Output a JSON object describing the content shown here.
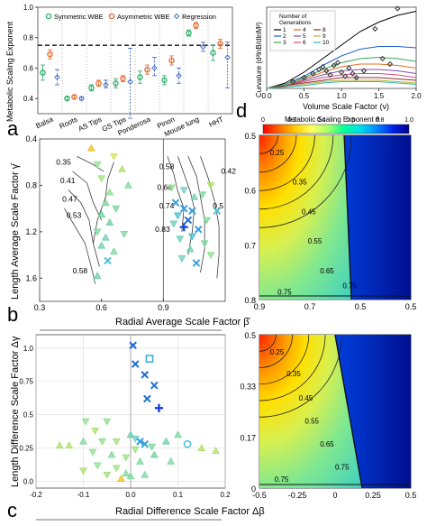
{
  "panel_labels": [
    "a",
    "b",
    "c",
    "d"
  ],
  "colorbar": {
    "title": "Metabolic Scaling Exponent θ",
    "ticks": [
      "0",
      "0.2",
      "0.4",
      "0.6",
      "0.8",
      "1.0"
    ],
    "stops": [
      "#ff0000",
      "#ff6a00",
      "#ffcc00",
      "#ffff66",
      "#aaff66",
      "#00ff99",
      "#00ddee",
      "#0088ff",
      "#0022ee",
      "#00008b"
    ]
  },
  "chart_data": [
    {
      "panel": "a",
      "type": "scatter",
      "ylabel": "Metabolic Scaling Exponent",
      "ylim": [
        0.3,
        1.0
      ],
      "yticks": [
        "0.4",
        "0.6",
        "0.8",
        "1.0"
      ],
      "reference_line": 0.75,
      "categories": [
        "Balsa",
        "Roots",
        "AS Tips",
        "GS Tips",
        "Ponderosa",
        "Pinon",
        "Mouse lung",
        "HHT"
      ],
      "legend": "top",
      "series": [
        {
          "name": "Symmetric WBE",
          "color": "#3cb371",
          "marker": "circle",
          "values": [
            0.57,
            0.4,
            0.47,
            0.5,
            0.54,
            0.52,
            0.83,
            0.7
          ],
          "err_lo": [
            0.05,
            0.01,
            0.02,
            0.03,
            0.04,
            0.03,
            0.02,
            0.05
          ],
          "err_hi": [
            0.05,
            0.01,
            0.02,
            0.03,
            0.04,
            0.03,
            0.02,
            0.05
          ]
        },
        {
          "name": "Asymmetric WBE",
          "color": "#e8743b",
          "marker": "circle",
          "values": [
            0.69,
            0.41,
            0.5,
            0.53,
            0.59,
            0.65,
            0.88,
            0.76
          ],
          "err_lo": [
            0.03,
            0.01,
            0.02,
            0.02,
            0.03,
            0.03,
            0.02,
            0.03
          ],
          "err_hi": [
            0.03,
            0.01,
            0.02,
            0.02,
            0.03,
            0.03,
            0.02,
            0.03
          ]
        },
        {
          "name": "Regression",
          "color": "#4a6fc8",
          "marker": "diamond",
          "values": [
            0.54,
            0.4,
            0.49,
            0.51,
            0.6,
            0.55,
            0.74,
            0.67
          ],
          "err_lo": [
            0.05,
            0.01,
            0.02,
            0.24,
            0.05,
            0.05,
            0.03,
            0.2
          ],
          "err_hi": [
            0.05,
            0.01,
            0.03,
            0.22,
            0.07,
            0.05,
            0.03,
            0.1
          ]
        }
      ]
    },
    {
      "panel": "top-right",
      "type": "line",
      "xlabel": "Volume Scale Factor (ν)",
      "ylabel": "Curvature (d²lnB/dlnM²)",
      "xlim": [
        0.0,
        2.0
      ],
      "xticks": [
        "0.0",
        "0.5",
        "1.0",
        "1.5",
        "2.0"
      ],
      "ylim": [
        0,
        0.06
      ],
      "legend": "top-left",
      "legend_title": "Number of Generations",
      "series": [
        {
          "name": "1",
          "color": "#000000",
          "x": [
            0.0,
            0.25,
            0.5,
            0.75,
            1.0,
            1.25,
            1.5,
            1.75,
            2.0
          ],
          "y": [
            0.0,
            0.004,
            0.012,
            0.022,
            0.032,
            0.042,
            0.049,
            0.054,
            0.057
          ]
        },
        {
          "name": "2",
          "color": "#1f5fd0",
          "x": [
            0.0,
            0.25,
            0.5,
            0.75,
            1.0,
            1.25,
            1.5,
            1.75,
            2.0
          ],
          "y": [
            0.0,
            0.003,
            0.009,
            0.017,
            0.024,
            0.029,
            0.031,
            0.031,
            0.03
          ]
        },
        {
          "name": "3",
          "color": "#3aa655",
          "x": [
            0.0,
            0.25,
            0.5,
            0.75,
            1.0,
            1.25,
            1.5,
            1.75,
            2.0
          ],
          "y": [
            0.0,
            0.003,
            0.008,
            0.014,
            0.019,
            0.022,
            0.023,
            0.022,
            0.02
          ]
        },
        {
          "name": "4",
          "color": "#e07020",
          "x": [
            0.0,
            0.25,
            0.5,
            0.75,
            1.0,
            1.25,
            1.5,
            1.75,
            2.0
          ],
          "y": [
            0.0,
            0.002,
            0.007,
            0.012,
            0.016,
            0.018,
            0.018,
            0.017,
            0.015
          ]
        },
        {
          "name": "5",
          "color": "#7b4fb0",
          "x": [
            0.0,
            0.25,
            0.5,
            0.75,
            1.0,
            1.25,
            1.5,
            1.75,
            2.0
          ],
          "y": [
            0.0,
            0.002,
            0.006,
            0.01,
            0.013,
            0.014,
            0.014,
            0.013,
            0.011
          ]
        },
        {
          "name": "6",
          "color": "#d44a7a",
          "x": [
            0.0,
            0.25,
            0.5,
            0.75,
            1.0,
            1.25,
            1.5,
            1.75,
            2.0
          ],
          "y": [
            0.0,
            0.002,
            0.005,
            0.008,
            0.01,
            0.011,
            0.011,
            0.01,
            0.008
          ]
        },
        {
          "name": "8",
          "color": "#8f2d2d",
          "x": [
            0.0,
            0.25,
            0.5,
            0.75,
            1.0,
            1.25,
            1.5,
            1.75,
            2.0
          ],
          "y": [
            0.0,
            0.002,
            0.004,
            0.006,
            0.008,
            0.008,
            0.008,
            0.007,
            0.006
          ]
        },
        {
          "name": "9",
          "color": "#b5b52d",
          "x": [
            0.0,
            0.25,
            0.5,
            0.75,
            1.0,
            1.25,
            1.5,
            1.75,
            2.0
          ],
          "y": [
            0.0,
            0.001,
            0.003,
            0.005,
            0.006,
            0.006,
            0.006,
            0.005,
            0.004
          ]
        },
        {
          "name": "10",
          "color": "#2db5b5",
          "x": [
            0.0,
            0.25,
            0.5,
            0.75,
            1.0,
            1.25,
            1.5,
            1.75,
            2.0
          ],
          "y": [
            0.0,
            0.001,
            0.002,
            0.004,
            0.005,
            0.005,
            0.005,
            0.004,
            0.003
          ]
        }
      ],
      "markers": [
        {
          "x": 0.35,
          "y": 0.005
        },
        {
          "x": 0.5,
          "y": 0.008
        },
        {
          "x": 0.62,
          "y": 0.011
        },
        {
          "x": 0.7,
          "y": 0.014
        },
        {
          "x": 0.75,
          "y": 0.016
        },
        {
          "x": 0.8,
          "y": 0.013
        },
        {
          "x": 0.85,
          "y": 0.01
        },
        {
          "x": 0.9,
          "y": 0.017
        },
        {
          "x": 0.95,
          "y": 0.019
        },
        {
          "x": 1.0,
          "y": 0.012
        },
        {
          "x": 1.05,
          "y": 0.009
        },
        {
          "x": 1.1,
          "y": 0.015
        },
        {
          "x": 1.15,
          "y": 0.011
        },
        {
          "x": 1.2,
          "y": 0.008
        },
        {
          "x": 1.3,
          "y": 0.013
        },
        {
          "x": 1.45,
          "y": 0.044
        },
        {
          "x": 1.55,
          "y": 0.022
        },
        {
          "x": 1.65,
          "y": 0.018
        },
        {
          "x": 1.75,
          "y": 0.059
        }
      ]
    },
    {
      "panel": "b",
      "type": "scatter",
      "xlabel": "Radial Average Scale Factor β̄",
      "ylabel": "Length Average Scale Factor γ̄",
      "xlim": [
        0.3,
        1.2
      ],
      "xticks": [
        "0.3",
        "0.6",
        "0.9"
      ],
      "ylim": [
        0.4,
        1.8
      ],
      "yticks": [
        "0.4",
        "0.8",
        "1.2",
        "1.6"
      ],
      "y_reversed": true,
      "contour_labels": [
        "0.35",
        "0.41",
        "0.47",
        "0.53",
        "0.58",
        "0.58",
        "0.66",
        "0.74",
        "0.83",
        "0.42",
        "0.5"
      ],
      "points": [
        {
          "x": 0.55,
          "y": 0.48,
          "m": "tri-up",
          "c": "#f0c020"
        },
        {
          "x": 0.66,
          "y": 0.55,
          "m": "tri-down",
          "c": "#d8e060"
        },
        {
          "x": 0.58,
          "y": 0.62,
          "m": "tri-down",
          "c": "#90e090"
        },
        {
          "x": 0.7,
          "y": 0.66,
          "m": "tri-up",
          "c": "#b0e070"
        },
        {
          "x": 0.6,
          "y": 0.74,
          "m": "tri-down",
          "c": "#a0e080"
        },
        {
          "x": 0.73,
          "y": 0.8,
          "m": "tri-up",
          "c": "#80d8a0"
        },
        {
          "x": 0.64,
          "y": 0.86,
          "m": "tri-up",
          "c": "#90e090"
        },
        {
          "x": 0.62,
          "y": 0.95,
          "m": "tri-up",
          "c": "#7fd49a"
        },
        {
          "x": 0.67,
          "y": 1.0,
          "m": "tri-down",
          "c": "#7fd49a"
        },
        {
          "x": 0.6,
          "y": 1.05,
          "m": "tri-up",
          "c": "#6fd0a0"
        },
        {
          "x": 0.64,
          "y": 1.12,
          "m": "tri-up",
          "c": "#6fd0a0"
        },
        {
          "x": 0.58,
          "y": 1.2,
          "m": "tri-down",
          "c": "#80d8a0"
        },
        {
          "x": 0.62,
          "y": 1.25,
          "m": "tri-up",
          "c": "#70d0b0"
        },
        {
          "x": 0.6,
          "y": 1.32,
          "m": "tri-up",
          "c": "#70d0b0"
        },
        {
          "x": 0.66,
          "y": 1.37,
          "m": "tri-up",
          "c": "#80d8a0"
        },
        {
          "x": 0.63,
          "y": 1.45,
          "m": "cross",
          "c": "#50c0d0"
        },
        {
          "x": 0.58,
          "y": 1.58,
          "m": "tri-up",
          "c": "#70d0b0"
        },
        {
          "x": 0.71,
          "y": 1.22,
          "m": "tri-down",
          "c": "#80d8a0"
        },
        {
          "x": 0.94,
          "y": 0.82,
          "m": "tri-down",
          "c": "#90e090"
        },
        {
          "x": 1.0,
          "y": 0.84,
          "m": "tri-down",
          "c": "#6fd0c0"
        },
        {
          "x": 1.05,
          "y": 0.9,
          "m": "tri-up",
          "c": "#70d0b0"
        },
        {
          "x": 1.09,
          "y": 0.88,
          "m": "tri-down",
          "c": "#80d8a0"
        },
        {
          "x": 1.13,
          "y": 0.8,
          "m": "tri-down",
          "c": "#b0e070"
        },
        {
          "x": 0.96,
          "y": 0.95,
          "m": "cross",
          "c": "#3aa0e0"
        },
        {
          "x": 1.0,
          "y": 1.0,
          "m": "cross",
          "c": "#3aa0e0"
        },
        {
          "x": 1.04,
          "y": 1.02,
          "m": "cross",
          "c": "#3aa0e0"
        },
        {
          "x": 0.97,
          "y": 1.06,
          "m": "tri-down",
          "c": "#50c0d0"
        },
        {
          "x": 1.02,
          "y": 1.1,
          "m": "cross",
          "c": "#2070d0"
        },
        {
          "x": 0.95,
          "y": 1.13,
          "m": "tri-down",
          "c": "#6fd0c0"
        },
        {
          "x": 1.0,
          "y": 1.16,
          "m": "plus",
          "c": "#1a50e0"
        },
        {
          "x": 1.07,
          "y": 1.18,
          "m": "cross",
          "c": "#3aa0e0"
        },
        {
          "x": 1.04,
          "y": 1.24,
          "m": "tri-down",
          "c": "#50c0d0"
        },
        {
          "x": 0.98,
          "y": 1.26,
          "m": "tri-down",
          "c": "#6fd0c0"
        },
        {
          "x": 1.1,
          "y": 1.3,
          "m": "tri-down",
          "c": "#80d8a0"
        },
        {
          "x": 1.03,
          "y": 1.35,
          "m": "tri-up",
          "c": "#70d0b0"
        },
        {
          "x": 1.13,
          "y": 1.4,
          "m": "tri-down",
          "c": "#90e090"
        },
        {
          "x": 0.99,
          "y": 1.43,
          "m": "tri-down",
          "c": "#6fd0c0"
        },
        {
          "x": 1.06,
          "y": 1.47,
          "m": "cross",
          "c": "#3aa0e0"
        },
        {
          "x": 1.11,
          "y": 1.1,
          "m": "tri-down",
          "c": "#80d8a0"
        },
        {
          "x": 1.16,
          "y": 1.02,
          "m": "cross",
          "c": "#50c0d0"
        }
      ]
    },
    {
      "panel": "c",
      "type": "scatter",
      "xlabel": "Radial Difference Scale Factor Δβ",
      "ylabel": "Length Difference Scale Factor Δγ",
      "xlim": [
        -0.2,
        0.2
      ],
      "xticks": [
        "-0.2",
        "-0.1",
        "0.0",
        "0.1",
        "0.2"
      ],
      "ylim": [
        -0.05,
        1.1
      ],
      "yticks": [
        "0.0",
        "0.25",
        "0.5",
        "0.75",
        "1.0"
      ],
      "points": [
        {
          "x": 0.005,
          "y": 1.02,
          "m": "cross",
          "c": "#1a60e0"
        },
        {
          "x": 0.04,
          "y": 0.92,
          "m": "square",
          "c": "#40b0e0"
        },
        {
          "x": 0.01,
          "y": 0.88,
          "m": "cross",
          "c": "#2070d0"
        },
        {
          "x": 0.03,
          "y": 0.8,
          "m": "cross",
          "c": "#2070d0"
        },
        {
          "x": 0.05,
          "y": 0.72,
          "m": "cross",
          "c": "#2070d0"
        },
        {
          "x": 0.035,
          "y": 0.62,
          "m": "cross",
          "c": "#2070d0"
        },
        {
          "x": 0.06,
          "y": 0.55,
          "m": "plus",
          "c": "#1a40e0"
        },
        {
          "x": -0.095,
          "y": 0.45,
          "m": "tri-down",
          "c": "#90e090"
        },
        {
          "x": -0.05,
          "y": 0.45,
          "m": "tri-down",
          "c": "#90e090"
        },
        {
          "x": -0.075,
          "y": 0.38,
          "m": "tri-down",
          "c": "#b0e070"
        },
        {
          "x": -0.1,
          "y": 0.3,
          "m": "tri-up",
          "c": "#80d8a0"
        },
        {
          "x": -0.06,
          "y": 0.3,
          "m": "tri-down",
          "c": "#90e090"
        },
        {
          "x": -0.03,
          "y": 0.3,
          "m": "tri-down",
          "c": "#a0e080"
        },
        {
          "x": 0.0,
          "y": 0.35,
          "m": "tri-up",
          "c": "#70d0b0"
        },
        {
          "x": 0.01,
          "y": 0.32,
          "m": "tri-down",
          "c": "#6fd0c0"
        },
        {
          "x": 0.02,
          "y": 0.3,
          "m": "cross",
          "c": "#3aa0e0"
        },
        {
          "x": 0.03,
          "y": 0.28,
          "m": "cross",
          "c": "#3aa0e0"
        },
        {
          "x": 0.045,
          "y": 0.26,
          "m": "tri-down",
          "c": "#80d8a0"
        },
        {
          "x": 0.075,
          "y": 0.3,
          "m": "tri-up",
          "c": "#70d0b0"
        },
        {
          "x": 0.1,
          "y": 0.35,
          "m": "tri-up",
          "c": "#80d8a0"
        },
        {
          "x": 0.12,
          "y": 0.28,
          "m": "circle",
          "c": "#40c0d0"
        },
        {
          "x": -0.15,
          "y": 0.27,
          "m": "tri-up",
          "c": "#b0e070"
        },
        {
          "x": -0.13,
          "y": 0.27,
          "m": "tri-up",
          "c": "#b0e070"
        },
        {
          "x": -0.08,
          "y": 0.22,
          "m": "tri-down",
          "c": "#90e090"
        },
        {
          "x": -0.04,
          "y": 0.2,
          "m": "tri-up",
          "c": "#80d8a0"
        },
        {
          "x": -0.01,
          "y": 0.18,
          "m": "tri-down",
          "c": "#a0e080"
        },
        {
          "x": 0.02,
          "y": 0.15,
          "m": "tri-up",
          "c": "#80d8a0"
        },
        {
          "x": 0.05,
          "y": 0.2,
          "m": "tri-up",
          "c": "#6fd0a0"
        },
        {
          "x": 0.085,
          "y": 0.15,
          "m": "tri-up",
          "c": "#80d8a0"
        },
        {
          "x": 0.15,
          "y": 0.25,
          "m": "tri-up",
          "c": "#b0e070"
        },
        {
          "x": 0.18,
          "y": 0.23,
          "m": "tri-up",
          "c": "#b0e070"
        },
        {
          "x": -0.07,
          "y": 0.12,
          "m": "tri-down",
          "c": "#90e090"
        },
        {
          "x": -0.03,
          "y": 0.1,
          "m": "tri-down",
          "c": "#a0e080"
        },
        {
          "x": -0.05,
          "y": 0.05,
          "m": "tri-down",
          "c": "#a0e080"
        },
        {
          "x": -0.01,
          "y": 0.06,
          "m": "tri-up",
          "c": "#80d8a0"
        },
        {
          "x": -0.02,
          "y": 0.02,
          "m": "tri-up",
          "c": "#f0c020"
        },
        {
          "x": 0.0,
          "y": 0.04,
          "m": "tri-up",
          "c": "#80d8a0"
        },
        {
          "x": 0.03,
          "y": 0.05,
          "m": "tri-up",
          "c": "#80d8a0"
        },
        {
          "x": -0.1,
          "y": 0.08,
          "m": "tri-down",
          "c": "#b0e070"
        },
        {
          "x": 0.01,
          "y": 0.24,
          "m": "tri-down",
          "c": "#a0e080"
        }
      ]
    },
    {
      "panel": "d",
      "type": "heatmap",
      "xlabel": "",
      "ylabel": "",
      "xticks": [
        "0.9",
        "0.7",
        "0.5",
        "0.5"
      ],
      "yticks": [
        "0.5",
        "0.6",
        "0.7",
        "0.8"
      ],
      "contour_labels": [
        "0.25",
        "0.35",
        "0.45",
        "0.55",
        "0.65",
        "0.75",
        "0.75"
      ]
    },
    {
      "panel": "d-lower",
      "type": "heatmap",
      "xlabel": "",
      "ylabel": "",
      "xticks": [
        "-0.5",
        "-0.25",
        "0",
        "0.25",
        "0.5"
      ],
      "yticks": [
        "0.5",
        "0.33",
        "0.17",
        "0"
      ],
      "contour_labels": [
        "0.25",
        "0.35",
        "0.45",
        "0.55",
        "0.65",
        "0.75",
        "0.75"
      ]
    }
  ]
}
